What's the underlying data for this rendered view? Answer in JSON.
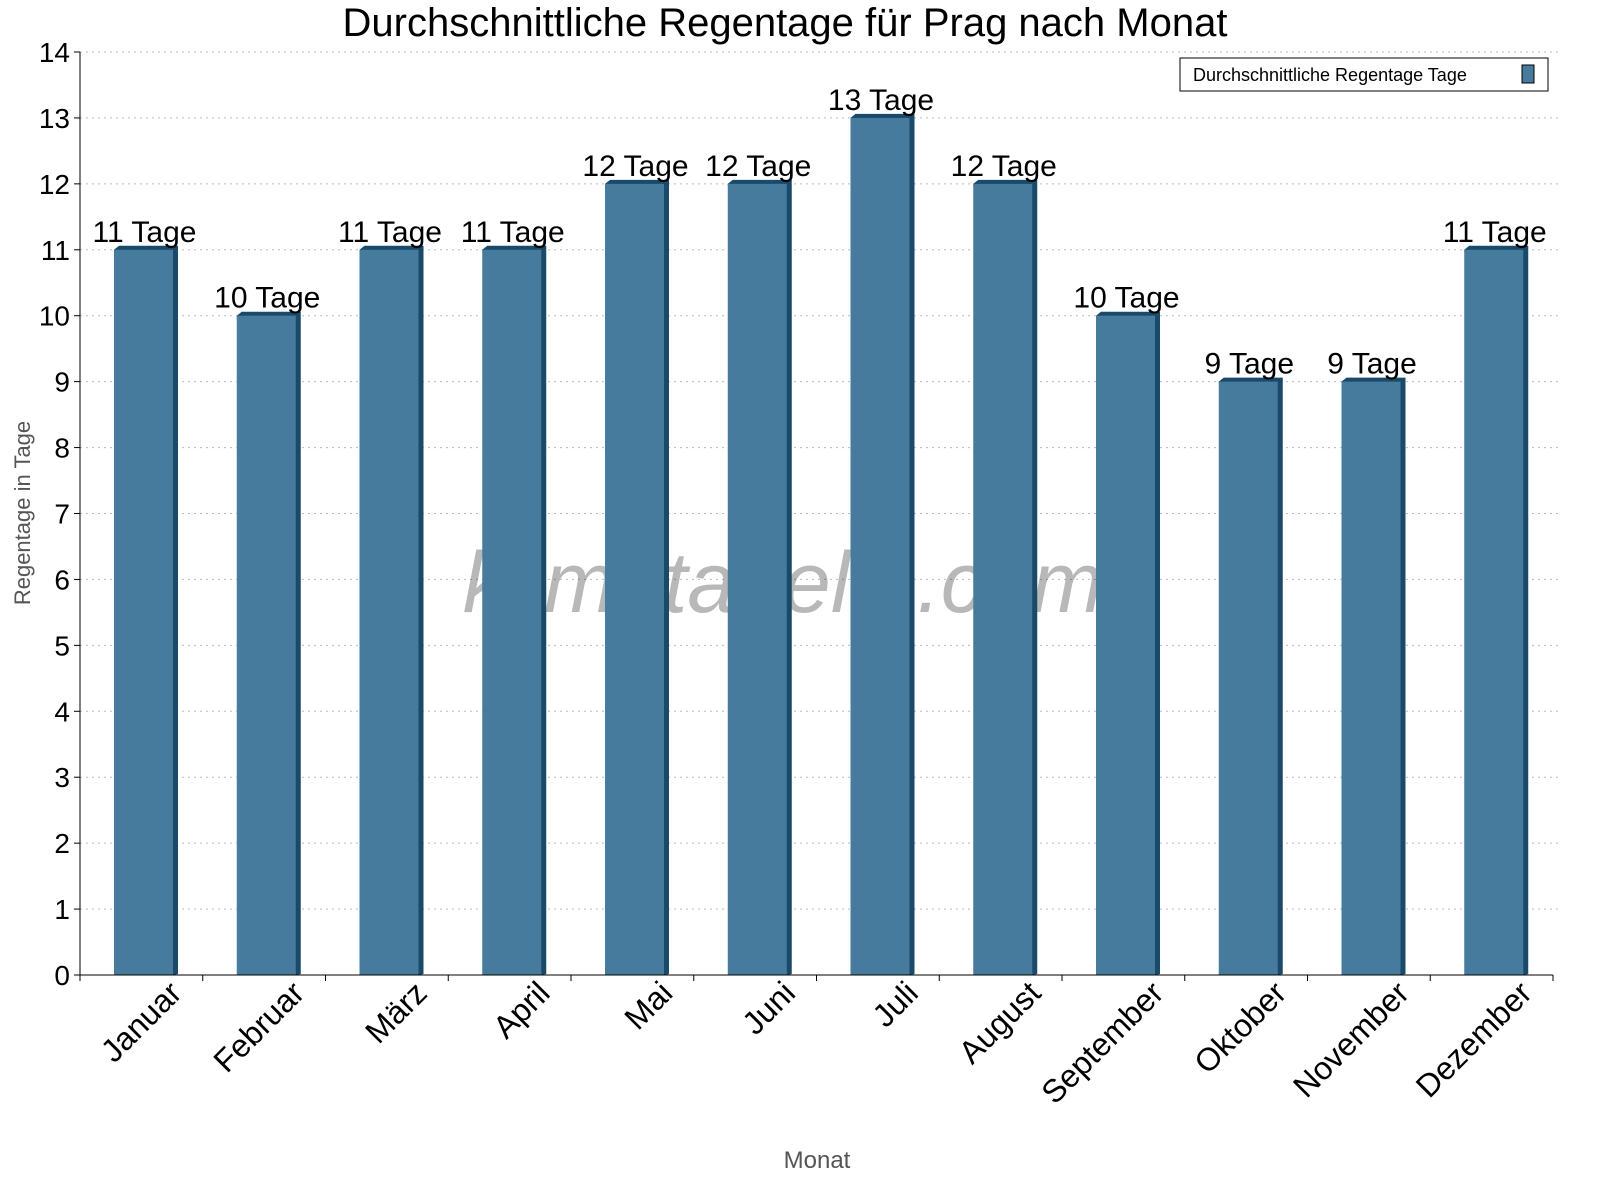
{
  "chart_data": {
    "type": "bar",
    "title": "Durchschnittliche Regentage für Prag nach Monat",
    "xlabel": "Monat",
    "ylabel": "Regentage in Tage",
    "ylim": [
      0,
      14
    ],
    "yticks": [
      0,
      1,
      2,
      3,
      4,
      5,
      6,
      7,
      8,
      9,
      10,
      11,
      12,
      13,
      14
    ],
    "grid": true,
    "legend_position": "top-right",
    "categories": [
      "Januar",
      "Februar",
      "März",
      "April",
      "Mai",
      "Juni",
      "Juli",
      "August",
      "September",
      "Oktober",
      "November",
      "Dezember"
    ],
    "series": [
      {
        "name": "Durchschnittliche Regentage Tage",
        "values": [
          11,
          10,
          11,
          11,
          12,
          12,
          13,
          12,
          10,
          9,
          9,
          11
        ],
        "data_labels": [
          "11 Tage",
          "10 Tage",
          "11 Tage",
          "11 Tage",
          "12 Tage",
          "12 Tage",
          "13 Tage",
          "12 Tage",
          "10 Tage",
          "9 Tage",
          "9 Tage",
          "11 Tage"
        ],
        "color": "#467b9e",
        "edge_color": "#1a4a6a"
      }
    ],
    "watermark": "klimatabelle.com"
  }
}
